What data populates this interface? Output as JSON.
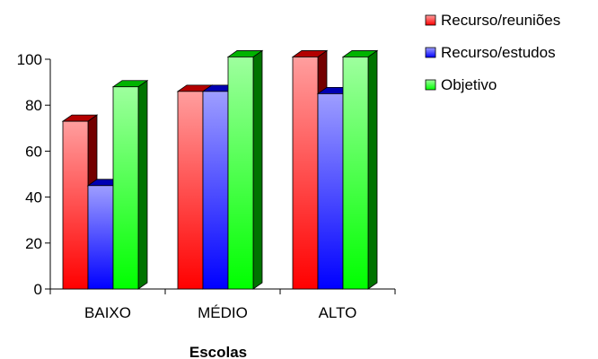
{
  "chart_data": {
    "type": "bar",
    "categories": [
      "BAIXO",
      "MÉDIO",
      "ALTO"
    ],
    "series": [
      {
        "name": "Recurso/reuniões",
        "values": [
          73,
          86,
          101
        ],
        "color": "#ff0000"
      },
      {
        "name": "Recurso/estudos",
        "values": [
          45,
          86,
          85
        ],
        "color": "#0000ff"
      },
      {
        "name": "Objetivo",
        "values": [
          88,
          101,
          101
        ],
        "color": "#00ff00"
      }
    ],
    "title": "",
    "xlabel": "Escolas",
    "ylabel": "",
    "ylim": [
      0,
      100
    ],
    "yticks": [
      0,
      20,
      40,
      60,
      80,
      100
    ],
    "legend_position": "top-right",
    "grid": false,
    "style": "3d-column"
  }
}
